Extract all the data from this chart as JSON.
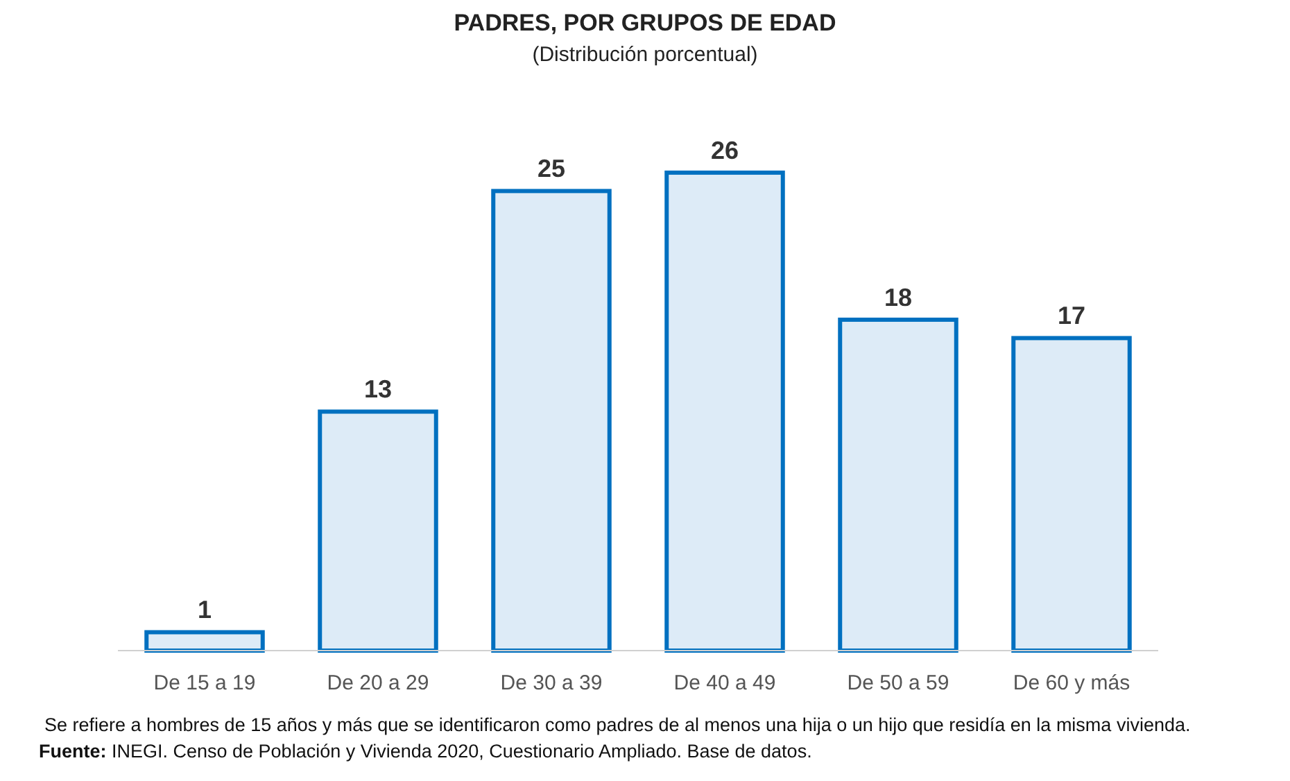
{
  "chart_data": {
    "type": "bar",
    "title": "PADRES, POR GRUPOS DE EDAD",
    "subtitle": "(Distribución porcentual)",
    "categories": [
      "De 15 a 19",
      "De 20 a 29",
      "De 30 a 39",
      "De 40 a 49",
      "De 50 a 59",
      "De 60 y más"
    ],
    "values": [
      1,
      13,
      25,
      26,
      18,
      17
    ],
    "color": "#ddebf7",
    "data_labels": true,
    "annotations": [
      "Se refiere a hombres de 15 años y más que se identificaron como padres de al menos una hija o un hijo que residía en la misma vivienda.",
      "Fuente: INEGI. Censo de Población y Vivienda 2020, Cuestionario Ampliado. Base de datos."
    ]
  }
}
